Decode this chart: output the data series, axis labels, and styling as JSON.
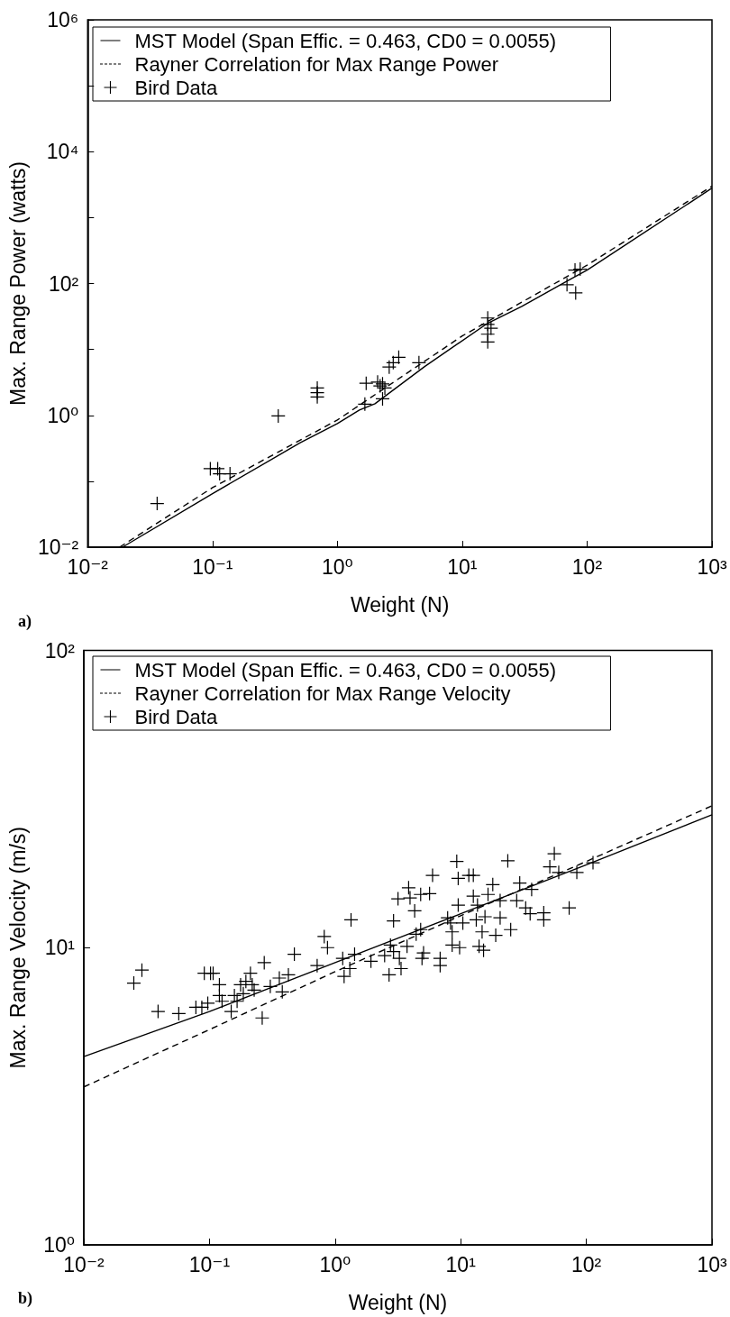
{
  "chart_data": [
    {
      "type": "scatter",
      "xlabel": "Weight (N)",
      "ylabel": "Max. Range Power (watts)",
      "log": "xy",
      "grid": false,
      "legend": "top left",
      "xlim": [
        0.01,
        1000
      ],
      "ylim": [
        0.01,
        1000000
      ],
      "xticks": [
        {
          "value": 0.01,
          "label": "10⁻²"
        },
        {
          "value": 0.1,
          "label": "10⁻¹"
        },
        {
          "value": 1,
          "label": "10⁰"
        },
        {
          "value": 10,
          "label": "10¹"
        },
        {
          "value": 100,
          "label": "10²"
        },
        {
          "value": 1000,
          "label": "10³"
        }
      ],
      "yticks": [
        {
          "value": 0.01,
          "label": "10⁻²"
        },
        {
          "value": 0.1,
          "label": null
        },
        {
          "value": 1,
          "label": "10⁰"
        },
        {
          "value": 10,
          "label": null
        },
        {
          "value": 100,
          "label": "10²"
        },
        {
          "value": 1000,
          "label": null
        },
        {
          "value": 10000,
          "label": "10⁴"
        },
        {
          "value": 100000,
          "label": null
        },
        {
          "value": 1000000,
          "label": "10⁶"
        }
      ],
      "annotations": [
        "a)"
      ],
      "series": [
        {
          "type": "line",
          "name": "MST Model (Span Effic. = 0.463, CD0 = 0.0055)",
          "color": "#000000",
          "line_style": "solid",
          "marker": "none",
          "x": [
            0.019,
            0.1,
            0.5,
            1,
            1.5,
            2,
            5,
            16,
            30,
            70,
            100,
            1000
          ],
          "values": [
            0.01,
            0.065,
            0.38,
            0.75,
            1.2,
            1.5,
            5.5,
            25,
            45,
            110,
            160,
            2800
          ]
        },
        {
          "type": "line",
          "name": "Rayner Correlation for Max Range Power",
          "color": "#000000",
          "line_style": "dashed",
          "marker": "none",
          "x": [
            0.018,
            0.1,
            1,
            10,
            100,
            1000
          ],
          "values": [
            0.01,
            0.08,
            0.85,
            16,
            190,
            3000
          ]
        },
        {
          "type": "scatter",
          "name": "Bird Data",
          "color": "#000000",
          "marker": "cross",
          "x": [
            0.036,
            0.096,
            0.11,
            0.114,
            0.138,
            0.336,
            0.69,
            0.69,
            0.69,
            1.66,
            1.7,
            2.1,
            2.2,
            2.3,
            2.4,
            2.3,
            2.6,
            2.8,
            3.1,
            4.5,
            16,
            16,
            17,
            16,
            16,
            80,
            88,
            69,
            81
          ],
          "values": [
            0.046,
            0.155,
            0.155,
            0.13,
            0.13,
            0.98,
            2.6,
            2.2,
            1.9,
            1.48,
            3.07,
            3.2,
            2.8,
            3.0,
            2.6,
            1.78,
            5.4,
            6.3,
            7.6,
            6.3,
            30,
            24,
            21,
            17,
            13,
            160,
            165,
            96,
            72
          ]
        }
      ]
    },
    {
      "type": "scatter",
      "xlabel": "Weight (N)",
      "ylabel": "Max. Range Velocity (m/s)",
      "log": "xy",
      "grid": false,
      "legend": "top left",
      "xlim": [
        0.01,
        1000
      ],
      "ylim": [
        1,
        100
      ],
      "xticks": [
        {
          "value": 0.01,
          "label": "10⁻²"
        },
        {
          "value": 0.1,
          "label": "10⁻¹"
        },
        {
          "value": 1,
          "label": "10⁰"
        },
        {
          "value": 10,
          "label": "10¹"
        },
        {
          "value": 100,
          "label": "10²"
        },
        {
          "value": 1000,
          "label": "10³"
        }
      ],
      "yticks": [
        {
          "value": 1,
          "label": "10⁰"
        },
        {
          "value": 10,
          "label": "10¹"
        },
        {
          "value": 100,
          "label": "10²"
        }
      ],
      "annotations": [
        "b)"
      ],
      "series": [
        {
          "type": "line",
          "name": "MST Model (Span Effic. = 0.463, CD0 = 0.0055)",
          "color": "#000000",
          "line_style": "solid",
          "marker": "none",
          "x": [
            0.01,
            0.1,
            1,
            10,
            100,
            1000
          ],
          "values": [
            4.3,
            6.1,
            8.9,
            13,
            19,
            28
          ]
        },
        {
          "type": "line",
          "name": "Rayner Correlation for Max Range Velocity",
          "color": "#000000",
          "line_style": "dashed",
          "marker": "none",
          "x": [
            0.01,
            0.1,
            1,
            10,
            100,
            1000
          ],
          "values": [
            3.4,
            5.3,
            8.3,
            12.8,
            19.5,
            30
          ]
        },
        {
          "type": "scatter",
          "name": "Bird Data",
          "color": "#000000",
          "marker": "cross",
          "x": [
            0.025,
            0.029,
            0.039,
            0.057,
            0.078,
            0.087,
            0.097,
            0.091,
            0.102,
            0.107,
            0.12,
            0.12,
            0.126,
            0.149,
            0.158,
            0.166,
            0.177,
            0.186,
            0.195,
            0.212,
            0.219,
            0.227,
            0.263,
            0.273,
            0.305,
            0.36,
            0.38,
            0.425,
            0.474,
            0.72,
            0.82,
            0.87,
            1.15,
            1.18,
            1.31,
            1.34,
            1.43,
            1.93,
            2.69,
            2.92,
            3.17,
            2.48,
            2.76,
            3.25,
            3.35,
            2.92,
            3.74,
            4.42,
            4.3,
            4.8,
            4.92,
            5.06,
            6.86,
            6.86,
            3.85,
            3.95,
            4.8,
            5.65,
            5.97,
            7.87,
            8.3,
            8.55,
            8.55,
            9.3,
            9.55,
            9.55,
            9.8,
            10.4,
            11.6,
            12.6,
            12.6,
            13.3,
            13.6,
            14.0,
            14.8,
            15.2,
            15.6,
            16.5,
            18.0,
            19.0,
            20.6,
            20.6,
            23.7,
            25.0,
            27.9,
            29.5,
            32.9,
            35.7,
            36.7,
            45.8,
            45.8,
            51.2,
            55.6,
            60.3,
            73,
            84,
            113
          ],
          "values": [
            7.6,
            8.4,
            6.1,
            6.0,
            6.3,
            6.3,
            6.5,
            8.2,
            8.2,
            8.2,
            7.5,
            6.9,
            6.6,
            6.1,
            6.9,
            6.6,
            7.5,
            7.0,
            7.7,
            8.2,
            7.5,
            7.2,
            5.8,
            8.9,
            7.4,
            7.9,
            7.1,
            8.1,
            9.5,
            8.7,
            10.9,
            10.0,
            9.2,
            8.0,
            8.5,
            12.4,
            9.5,
            9.0,
            8.1,
            12.3,
            14.6,
            9.4,
            10.2,
            9.2,
            8.5,
            9.7,
            10.1,
            11.1,
            13.3,
            11.5,
            9.2,
            9.6,
            9.2,
            8.7,
            15.9,
            14.7,
            15.1,
            15.2,
            17.5,
            12.6,
            12.1,
            11.3,
            10.2,
            19.5,
            17.1,
            13.9,
            10.0,
            12.1,
            17.5,
            17.5,
            14.9,
            12.4,
            13.9,
            10.1,
            11.3,
            9.8,
            12.7,
            15.1,
            16.3,
            11.0,
            12.6,
            14.4,
            19.6,
            11.5,
            14.4,
            16.5,
            13.6,
            13.0,
            15.7,
            13.1,
            12.4,
            18.7,
            20.7,
            17.9,
            13.6,
            17.9,
            19.3
          ]
        }
      ]
    }
  ]
}
